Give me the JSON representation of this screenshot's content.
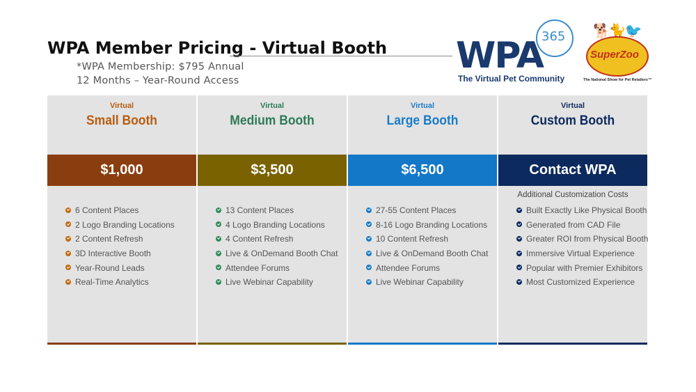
{
  "header": {
    "title": "WPA Member Pricing - Virtual Booth",
    "membership_line": "*WPA Membership:  $795 Annual",
    "access_line": "12 Months – Year-Round Access"
  },
  "logos": {
    "wpa_letters": "WPA",
    "wpa_365": "365",
    "wpa_tagline": "The Virtual Pet Community",
    "superzoo_name": "SuperZoo",
    "superzoo_tagline": "The National Show for Pet Retailers™"
  },
  "colors": {
    "small": "#8a3e10",
    "medium": "#7a6200",
    "large": "#1378c8",
    "custom": "#0d2a5e",
    "small_text": "#b85c10",
    "medium_text": "#2e7a5a",
    "large_text": "#1a7cc8",
    "custom_text": "#0d2a5e",
    "check_small": "#c06a10",
    "check_medium": "#2e8a5a",
    "check_large": "#1a7cc8",
    "check_custom": "#0d2a5e"
  },
  "columns": [
    {
      "virtual": "Virtual",
      "name": "Small Booth",
      "price": "$1,000",
      "note": "",
      "features": [
        "6 Content Places",
        "2 Logo Branding Locations",
        "2 Content Refresh",
        "3D Interactive Booth",
        "Year-Round Leads",
        "Real-Time Analytics"
      ]
    },
    {
      "virtual": "Virtual",
      "name": "Medium Booth",
      "price": "$3,500",
      "note": "",
      "features": [
        "13 Content Places",
        "4 Logo Branding Locations",
        "4 Content Refresh",
        "Live & OnDemand Booth Chat",
        "Attendee Forums",
        "Live Webinar Capability"
      ]
    },
    {
      "virtual": "Virtual",
      "name": "Large Booth",
      "price": "$6,500",
      "note": "",
      "features": [
        "27-55 Content Places",
        "8-16 Logo Branding Locations",
        "10 Content Refresh",
        "Live & OnDemand Booth Chat",
        "Attendee Forums",
        "Live Webinar Capability"
      ]
    },
    {
      "virtual": "Virtual",
      "name": "Custom Booth",
      "price": "Contact WPA",
      "note": "Additional  Customization Costs",
      "features": [
        "Built Exactly Like Physical Booth",
        "Generated from CAD File",
        "Greater ROI from Physical Booth",
        "Immersive Virtual Experience",
        "Popular with Premier Exhibitors",
        "Most Customized Experience"
      ]
    }
  ]
}
